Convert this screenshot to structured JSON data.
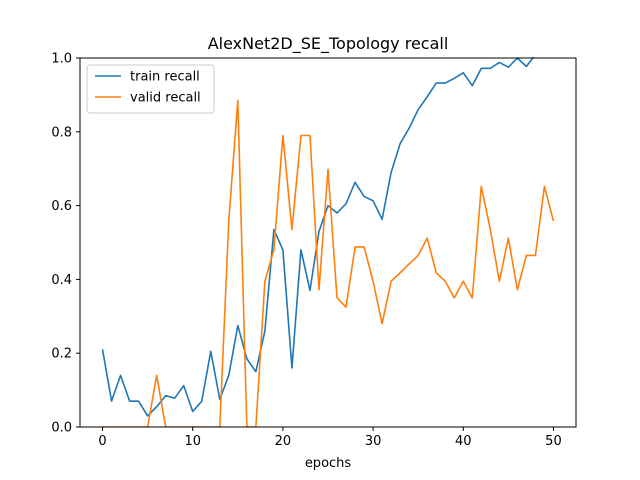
{
  "chart_data": {
    "type": "line",
    "title": "AlexNet2D_SE_Topology recall",
    "xlabel": "epochs",
    "ylabel": "",
    "xlim": [
      -2.5,
      52.5
    ],
    "ylim": [
      0,
      1.0
    ],
    "xticks": [
      0,
      10,
      20,
      30,
      40,
      50
    ],
    "yticks": [
      0.0,
      0.2,
      0.4,
      0.6,
      0.8,
      1.0
    ],
    "yticklabels": [
      "0.0",
      "0.2",
      "0.4",
      "0.6",
      "0.8",
      "1.0"
    ],
    "grid": false,
    "legend_position": "top-left",
    "x": [
      0,
      1,
      2,
      3,
      4,
      5,
      6,
      7,
      8,
      9,
      10,
      11,
      12,
      13,
      14,
      15,
      16,
      17,
      18,
      19,
      20,
      21,
      22,
      23,
      24,
      25,
      26,
      27,
      28,
      29,
      30,
      31,
      32,
      33,
      34,
      35,
      36,
      37,
      38,
      39,
      40,
      41,
      42,
      43,
      44,
      45,
      46,
      47,
      48,
      49,
      50
    ],
    "series": [
      {
        "name": "train recall",
        "color": "#1f77b4",
        "values": [
          0.21,
          0.07,
          0.14,
          0.07,
          0.07,
          0.03,
          0.055,
          0.085,
          0.078,
          0.112,
          0.042,
          0.07,
          0.205,
          0.075,
          0.14,
          0.275,
          0.185,
          0.15,
          0.26,
          0.535,
          0.48,
          0.16,
          0.48,
          0.37,
          0.53,
          0.6,
          0.58,
          0.605,
          0.663,
          0.625,
          0.613,
          0.563,
          0.69,
          0.768,
          0.81,
          0.86,
          0.895,
          0.932,
          0.932,
          0.945,
          0.96,
          0.925,
          0.972,
          0.972,
          0.988,
          0.975,
          1.0,
          0.977,
          1.01,
          1.01,
          1.01
        ]
      },
      {
        "name": "valid recall",
        "color": "#ff7f0e",
        "values": [
          0.0,
          0.0,
          0.0,
          0.0,
          0.0,
          0.0,
          0.14,
          0.0,
          0.0,
          0.0,
          0.0,
          0.0,
          0.0,
          0.0,
          0.56,
          0.885,
          0.0,
          0.0,
          0.395,
          0.48,
          0.79,
          0.535,
          0.79,
          0.79,
          0.372,
          0.698,
          0.35,
          0.325,
          0.488,
          0.488,
          0.395,
          0.28,
          0.395,
          0.418,
          0.442,
          0.465,
          0.512,
          0.418,
          0.395,
          0.35,
          0.395,
          0.35,
          0.652,
          0.535,
          0.395,
          0.512,
          0.372,
          0.465,
          0.465,
          0.652,
          0.558
        ]
      }
    ]
  }
}
